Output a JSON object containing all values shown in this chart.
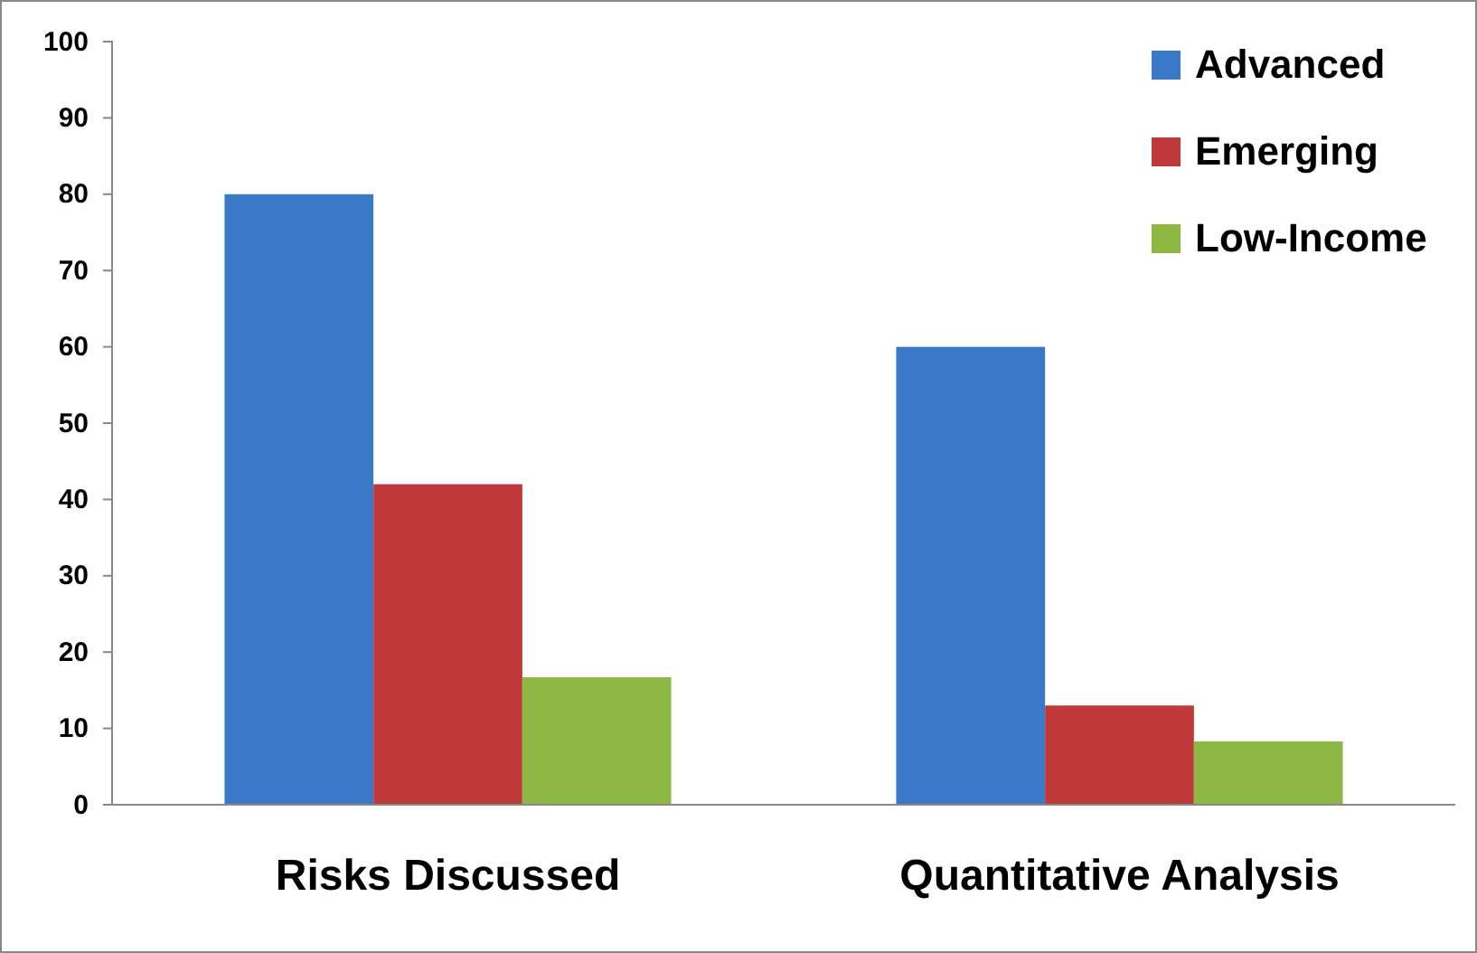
{
  "chart_data": {
    "type": "bar",
    "categories": [
      "Risks Discussed",
      "Quantitative Analysis"
    ],
    "series": [
      {
        "name": "Advanced",
        "color": "#3a78c8",
        "values": [
          80,
          60
        ]
      },
      {
        "name": "Emerging",
        "color": "#c0393a",
        "values": [
          42,
          13
        ]
      },
      {
        "name": "Low-Income",
        "color": "#8db843",
        "values": [
          16.7,
          8.3
        ]
      }
    ],
    "ylim": [
      0,
      100
    ],
    "yticks": [
      0,
      10,
      20,
      30,
      40,
      50,
      60,
      70,
      80,
      90,
      100
    ],
    "grid": false,
    "legend": "top right"
  }
}
